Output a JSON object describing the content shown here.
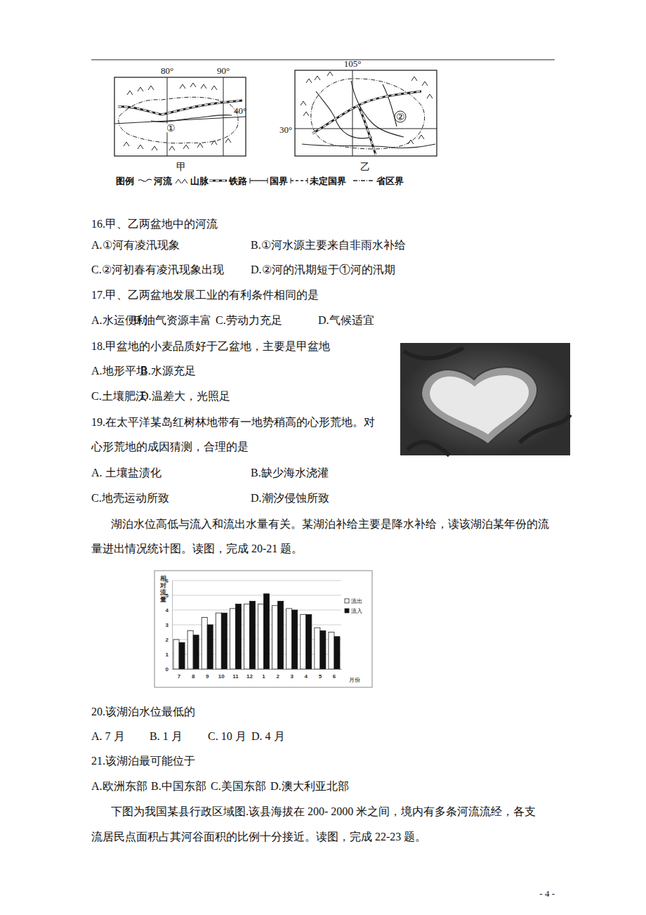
{
  "maps": {
    "jia": {
      "label": "甲",
      "lon_labels": [
        "80°",
        "90°"
      ],
      "lat_labels": [
        "40°"
      ],
      "marker": "①"
    },
    "yi": {
      "label": "乙",
      "lon_labels": [
        "105°"
      ],
      "lat_labels": [
        "30°"
      ],
      "marker": "②"
    },
    "legend": {
      "title": "图例",
      "items": [
        "河流",
        "山脉",
        "铁路",
        "国界",
        "未定国界",
        "省区界"
      ]
    }
  },
  "questions": [
    {
      "stem": [
        "16.甲、乙两盆地中的河流"
      ],
      "options": [
        "A.①河有凌汛现象",
        "B.①河水源主要来自非雨水补给",
        "C.②河初春有凌汛现象出现",
        "D.②河的汛期短于①河的汛期"
      ]
    },
    {
      "stem": [
        "17.甲、乙两盆地发展工业的有利条件相同的是"
      ],
      "options": [
        "A.水运便利",
        "B.油气资源丰富",
        "C.劳动力充足",
        "D.气候适宜"
      ]
    },
    {
      "stem": [
        "18.甲盆地的小麦品质好于乙盆地，主要是甲盆地"
      ],
      "options": [
        "A.地形平坦",
        "B.水源充足",
        "C.土壤肥沃",
        "D.温差大，光照足"
      ]
    },
    {
      "stem": [
        "19.在太平洋某岛红树林地带有一地势稍高的心形荒地。对",
        "心形荒地的成因猜测，合理的是"
      ],
      "options": [
        "A. 土壤盐渍化",
        "B.缺少海水浇灌",
        "C.地壳运动所致",
        "D.潮汐侵蚀所致"
      ]
    }
  ],
  "passage_1": [
    "湖泊水位高低与流入和流出水量有关。某湖泊补给主要是降水补给，读该湖泊某年份的流",
    "量进出情况统计图。读图，完成 20-21 题。"
  ],
  "questions_2": [
    {
      "stem": [
        "20.该湖泊水位最低的"
      ],
      "options": [
        "A. 7 月",
        "B. 1 月",
        "C. 10 月",
        "D. 4 月"
      ]
    },
    {
      "stem": [
        "21.该湖泊最可能位于"
      ],
      "options": [
        "A.欧洲东部",
        "B.中国东部",
        "C.美国东部",
        "D.澳大利亚北部"
      ]
    }
  ],
  "passage_2": [
    "下图为我国某县行政区域图.该县海拔在 200- 2000 米之间，境内有多条河流流经，各支",
    "流居民点面积占其河谷面积的比例十分接近。读图，完成 22-23 题。"
  ],
  "page_number": "- 4 -",
  "chart_data": {
    "type": "bar",
    "ylabel": "相对流量",
    "xlabel": "月份",
    "categories": [
      "7",
      "8",
      "9",
      "10",
      "11",
      "12",
      "1",
      "2",
      "3",
      "4",
      "5",
      "6"
    ],
    "series": [
      {
        "name": "流出",
        "color": "#ffffff",
        "values": [
          2.0,
          2.6,
          3.5,
          3.8,
          4.1,
          4.4,
          4.4,
          4.3,
          4.1,
          3.7,
          2.8,
          2.5
        ]
      },
      {
        "name": "流入",
        "color": "#111111",
        "values": [
          1.8,
          2.3,
          3.0,
          3.8,
          4.4,
          4.6,
          5.1,
          4.6,
          4.0,
          3.7,
          2.6,
          2.2
        ]
      }
    ],
    "ylim": [
      0,
      6
    ],
    "yticks": [
      0,
      1,
      2,
      3,
      4,
      5,
      6
    ],
    "grid": true,
    "legend": "right"
  }
}
